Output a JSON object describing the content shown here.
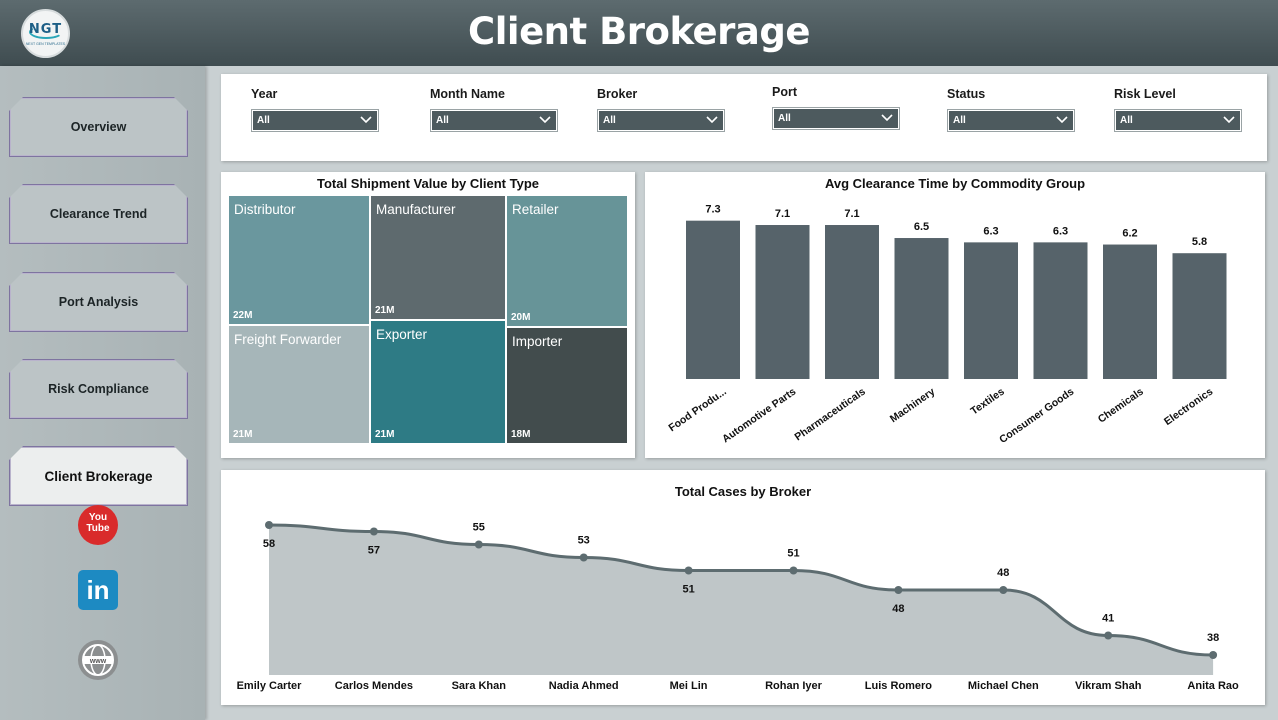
{
  "header": {
    "title": "Client Brokerage",
    "logo_text": "NGT",
    "logo_sub": "NEXT GEN TEMPLATES"
  },
  "sidebar": {
    "items": [
      {
        "label": "Overview",
        "active": false
      },
      {
        "label": "Clearance Trend",
        "active": false
      },
      {
        "label": "Port Analysis",
        "active": false
      },
      {
        "label": "Risk Compliance",
        "active": false
      },
      {
        "label": "Client Brokerage",
        "active": true
      }
    ],
    "social": {
      "youtube_top": "You",
      "youtube_bottom": "Tube",
      "linkedin": "in"
    }
  },
  "filters": [
    {
      "label": "Year",
      "value": "All"
    },
    {
      "label": "Month Name",
      "value": "All"
    },
    {
      "label": "Broker",
      "value": "All"
    },
    {
      "label": "Port",
      "value": "All"
    },
    {
      "label": "Status",
      "value": "All"
    },
    {
      "label": "Risk Level",
      "value": "All"
    }
  ],
  "colors": {
    "bar": "#56636a",
    "line": "#5d6c70",
    "area": "#bfc6c8"
  },
  "chart_data": [
    {
      "type": "treemap",
      "title": "Total Shipment Value by Client Type",
      "items": [
        {
          "name": "Distributor",
          "value": "22M",
          "color": "#6a979e"
        },
        {
          "name": "Manufacturer",
          "value": "21M",
          "color": "#5e6a6e"
        },
        {
          "name": "Retailer",
          "value": "20M",
          "color": "#679498"
        },
        {
          "name": "Freight Forwarder",
          "value": "21M",
          "color": "#a6b6b9"
        },
        {
          "name": "Exporter",
          "value": "21M",
          "color": "#2e7b85"
        },
        {
          "name": "Importer",
          "value": "18M",
          "color": "#424c4d"
        }
      ]
    },
    {
      "type": "bar",
      "title": "Avg Clearance Time by Commodity Group",
      "categories": [
        "Food Produ...",
        "Automotive Parts",
        "Pharmaceuticals",
        "Machinery",
        "Textiles",
        "Consumer Goods",
        "Chemicals",
        "Electronics"
      ],
      "values": [
        7.3,
        7.1,
        7.1,
        6.5,
        6.3,
        6.3,
        6.2,
        5.8
      ],
      "ylim": [
        0,
        7.7
      ]
    },
    {
      "type": "area",
      "title": "Total Cases by Broker",
      "categories": [
        "Emily Carter",
        "Carlos Mendes",
        "Sara Khan",
        "Nadia Ahmed",
        "Mei Lin",
        "Rohan Iyer",
        "Luis Romero",
        "Michael Chen",
        "Vikram Shah",
        "Anita Rao"
      ],
      "values": [
        58,
        57,
        55,
        53,
        51,
        51,
        48,
        48,
        41,
        38
      ],
      "ylim": [
        30,
        60
      ]
    }
  ]
}
